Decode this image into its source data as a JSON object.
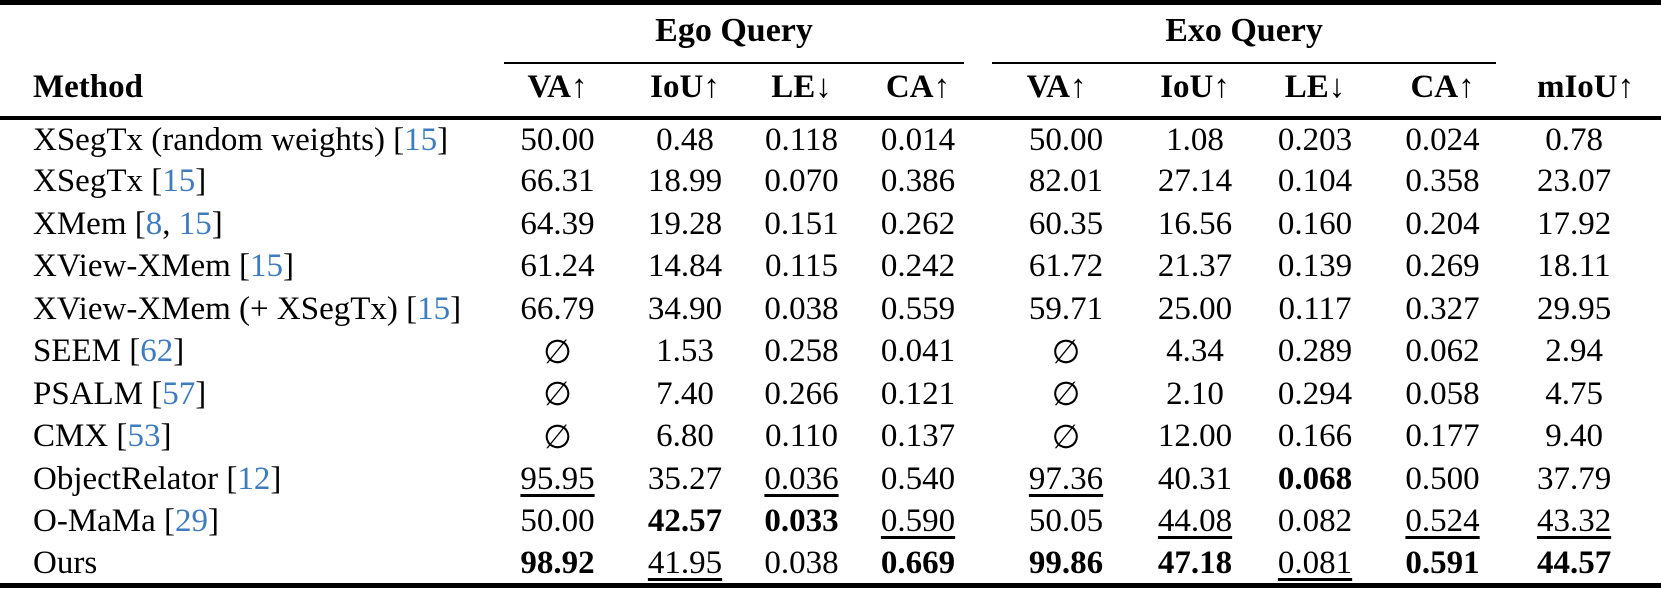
{
  "colors": {
    "citation_blue": "#3e7cbf",
    "text": "#000000",
    "background": "#ffffff"
  },
  "table": {
    "groups": [
      {
        "label": "Ego Query"
      },
      {
        "label": "Exo Query"
      }
    ],
    "method_header": "Method",
    "sub_headers": [
      "VA↑",
      "IoU↑",
      "LE↓",
      "CA↑",
      "VA↑",
      "IoU↑",
      "LE↓",
      "CA↑"
    ],
    "miou_header": "mIoU↑",
    "rows": [
      {
        "method": [
          {
            "t": "XSegTx (random weights) [",
            "c": false
          },
          {
            "t": "15",
            "c": true
          },
          {
            "t": "]",
            "c": false
          }
        ],
        "cells": [
          {
            "v": "50.00"
          },
          {
            "v": "0.48"
          },
          {
            "v": "0.118"
          },
          {
            "v": "0.014"
          },
          {
            "v": "50.00"
          },
          {
            "v": "1.08"
          },
          {
            "v": "0.203"
          },
          {
            "v": "0.024"
          },
          {
            "v": "0.78"
          }
        ]
      },
      {
        "method": [
          {
            "t": "XSegTx [",
            "c": false
          },
          {
            "t": "15",
            "c": true
          },
          {
            "t": "]",
            "c": false
          }
        ],
        "cells": [
          {
            "v": "66.31"
          },
          {
            "v": "18.99"
          },
          {
            "v": "0.070"
          },
          {
            "v": "0.386"
          },
          {
            "v": "82.01"
          },
          {
            "v": "27.14"
          },
          {
            "v": "0.104"
          },
          {
            "v": "0.358"
          },
          {
            "v": "23.07"
          }
        ]
      },
      {
        "method": [
          {
            "t": "XMem [",
            "c": false
          },
          {
            "t": "8",
            "c": true
          },
          {
            "t": ", ",
            "c": false
          },
          {
            "t": "15",
            "c": true
          },
          {
            "t": "]",
            "c": false
          }
        ],
        "cells": [
          {
            "v": "64.39"
          },
          {
            "v": "19.28"
          },
          {
            "v": "0.151"
          },
          {
            "v": "0.262"
          },
          {
            "v": "60.35"
          },
          {
            "v": "16.56"
          },
          {
            "v": "0.160"
          },
          {
            "v": "0.204"
          },
          {
            "v": "17.92"
          }
        ]
      },
      {
        "method": [
          {
            "t": "XView-XMem [",
            "c": false
          },
          {
            "t": "15",
            "c": true
          },
          {
            "t": "]",
            "c": false
          }
        ],
        "cells": [
          {
            "v": "61.24"
          },
          {
            "v": "14.84"
          },
          {
            "v": "0.115"
          },
          {
            "v": "0.242"
          },
          {
            "v": "61.72"
          },
          {
            "v": "21.37"
          },
          {
            "v": "0.139"
          },
          {
            "v": "0.269"
          },
          {
            "v": "18.11"
          }
        ]
      },
      {
        "method": [
          {
            "t": "XView-XMem (+ XSegTx) [",
            "c": false
          },
          {
            "t": "15",
            "c": true
          },
          {
            "t": "]",
            "c": false
          }
        ],
        "cells": [
          {
            "v": "66.79"
          },
          {
            "v": "34.90"
          },
          {
            "v": "0.038"
          },
          {
            "v": "0.559"
          },
          {
            "v": "59.71"
          },
          {
            "v": "25.00"
          },
          {
            "v": "0.117"
          },
          {
            "v": "0.327"
          },
          {
            "v": "29.95"
          }
        ]
      },
      {
        "method": [
          {
            "t": "SEEM [",
            "c": false
          },
          {
            "t": "62",
            "c": true
          },
          {
            "t": "]",
            "c": false
          }
        ],
        "cells": [
          {
            "v": "∅"
          },
          {
            "v": "1.53"
          },
          {
            "v": "0.258"
          },
          {
            "v": "0.041"
          },
          {
            "v": "∅"
          },
          {
            "v": "4.34"
          },
          {
            "v": "0.289"
          },
          {
            "v": "0.062"
          },
          {
            "v": "2.94"
          }
        ]
      },
      {
        "method": [
          {
            "t": "PSALM [",
            "c": false
          },
          {
            "t": "57",
            "c": true
          },
          {
            "t": "]",
            "c": false
          }
        ],
        "cells": [
          {
            "v": "∅"
          },
          {
            "v": "7.40"
          },
          {
            "v": "0.266"
          },
          {
            "v": "0.121"
          },
          {
            "v": "∅"
          },
          {
            "v": "2.10"
          },
          {
            "v": "0.294"
          },
          {
            "v": "0.058"
          },
          {
            "v": "4.75"
          }
        ]
      },
      {
        "method": [
          {
            "t": "CMX [",
            "c": false
          },
          {
            "t": "53",
            "c": true
          },
          {
            "t": "]",
            "c": false
          }
        ],
        "cells": [
          {
            "v": "∅"
          },
          {
            "v": "6.80"
          },
          {
            "v": "0.110"
          },
          {
            "v": "0.137"
          },
          {
            "v": "∅"
          },
          {
            "v": "12.00"
          },
          {
            "v": "0.166"
          },
          {
            "v": "0.177"
          },
          {
            "v": "9.40"
          }
        ]
      },
      {
        "method": [
          {
            "t": "ObjectRelator [",
            "c": false
          },
          {
            "t": "12",
            "c": true
          },
          {
            "t": "]",
            "c": false
          }
        ],
        "cells": [
          {
            "v": "95.95",
            "s": "u"
          },
          {
            "v": "35.27"
          },
          {
            "v": "0.036",
            "s": "u"
          },
          {
            "v": "0.540"
          },
          {
            "v": "97.36",
            "s": "u"
          },
          {
            "v": "40.31"
          },
          {
            "v": "0.068",
            "s": "b"
          },
          {
            "v": "0.500"
          },
          {
            "v": "37.79"
          }
        ]
      },
      {
        "method": [
          {
            "t": "O-MaMa  [",
            "c": false
          },
          {
            "t": "29",
            "c": true
          },
          {
            "t": "]",
            "c": false
          }
        ],
        "cells": [
          {
            "v": "50.00"
          },
          {
            "v": "42.57",
            "s": "b"
          },
          {
            "v": "0.033",
            "s": "b"
          },
          {
            "v": "0.590",
            "s": "u"
          },
          {
            "v": "50.05"
          },
          {
            "v": "44.08",
            "s": "u"
          },
          {
            "v": "0.082"
          },
          {
            "v": "0.524",
            "s": "u"
          },
          {
            "v": "43.32",
            "s": "u"
          }
        ]
      },
      {
        "method": [
          {
            "t": "Ours",
            "c": false
          }
        ],
        "cells": [
          {
            "v": "98.92",
            "s": "b"
          },
          {
            "v": "41.95",
            "s": "u"
          },
          {
            "v": "0.038"
          },
          {
            "v": "0.669",
            "s": "b"
          },
          {
            "v": "99.86",
            "s": "b"
          },
          {
            "v": "47.18",
            "s": "b"
          },
          {
            "v": "0.081",
            "s": "u"
          },
          {
            "v": "0.591",
            "s": "b"
          },
          {
            "v": "44.57",
            "s": "b"
          }
        ]
      }
    ]
  }
}
